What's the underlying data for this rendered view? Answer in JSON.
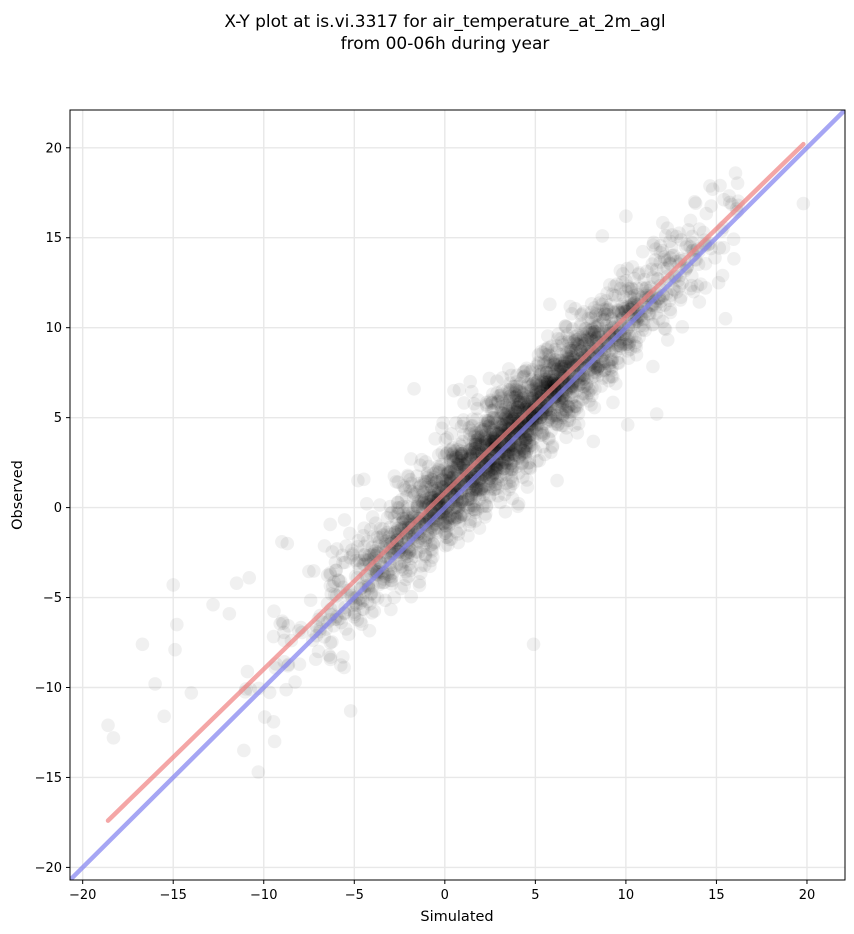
{
  "chart_data": {
    "type": "scatter",
    "title_lines": [
      "X-Y plot at is.vi.3317 for air_temperature_at_2m_agl",
      "from 00-06h during year"
    ],
    "xlabel": "Simulated",
    "ylabel": "Observed",
    "xlim": [
      -20.7,
      22.1
    ],
    "ylim": [
      -20.7,
      22.1
    ],
    "xticks": [
      -20,
      -15,
      -10,
      -5,
      0,
      5,
      10,
      15,
      20
    ],
    "yticks": [
      -20,
      -15,
      -10,
      -5,
      0,
      5,
      10,
      15,
      20
    ],
    "xtick_labels": [
      "−20",
      "−15",
      "−10",
      "−5",
      "0",
      "5",
      "10",
      "15",
      "20"
    ],
    "ytick_labels": [
      "−20",
      "−15",
      "−10",
      "−5",
      "0",
      "5",
      "10",
      "15",
      "20"
    ],
    "grid": true,
    "point_color": "#000000",
    "point_alpha": 0.06,
    "distribution": {
      "x_range": [
        -18.7,
        19.8
      ],
      "observed_approx": "0.97 * simulated + 0.7",
      "residual_sd": 1.4
    },
    "lines": [
      {
        "kind": "regression-fit",
        "color": "#f08080",
        "x": [
          -18.6,
          19.8
        ],
        "y": [
          -17.4,
          20.2
        ]
      },
      {
        "kind": "one-to-one",
        "color": "#8080f0",
        "x": [
          -20.7,
          22.1
        ],
        "y": [
          -20.7,
          22.1
        ]
      }
    ],
    "outliers": [
      [
        -18.6,
        -12.1
      ],
      [
        -18.3,
        -12.8
      ],
      [
        -16.7,
        -7.6
      ],
      [
        -16.0,
        -9.8
      ],
      [
        -15.5,
        -11.6
      ],
      [
        -15.0,
        -4.3
      ],
      [
        -14.8,
        -6.5
      ],
      [
        -14.9,
        -7.9
      ],
      [
        -14.0,
        -10.3
      ],
      [
        -12.8,
        -5.4
      ],
      [
        -11.9,
        -5.9
      ],
      [
        -11.5,
        -4.2
      ],
      [
        -10.8,
        -3.9
      ],
      [
        -11.1,
        -13.5
      ],
      [
        -10.3,
        -14.7
      ],
      [
        -9.0,
        -1.9
      ],
      [
        -8.7,
        -2.0
      ],
      [
        -9.4,
        -13.0
      ],
      [
        -5.2,
        -11.3
      ],
      [
        -4.8,
        1.5
      ],
      [
        -1.7,
        6.6
      ],
      [
        0.5,
        6.5
      ],
      [
        1.4,
        7.0
      ],
      [
        4.9,
        -7.6
      ],
      [
        5.8,
        11.3
      ],
      [
        6.2,
        1.5
      ],
      [
        8.7,
        15.1
      ],
      [
        10.0,
        16.2
      ],
      [
        10.1,
        4.6
      ],
      [
        11.7,
        5.2
      ],
      [
        13.8,
        17.0
      ],
      [
        15.2,
        17.9
      ],
      [
        15.5,
        10.5
      ],
      [
        16.2,
        16.8
      ],
      [
        19.8,
        16.9
      ]
    ]
  }
}
